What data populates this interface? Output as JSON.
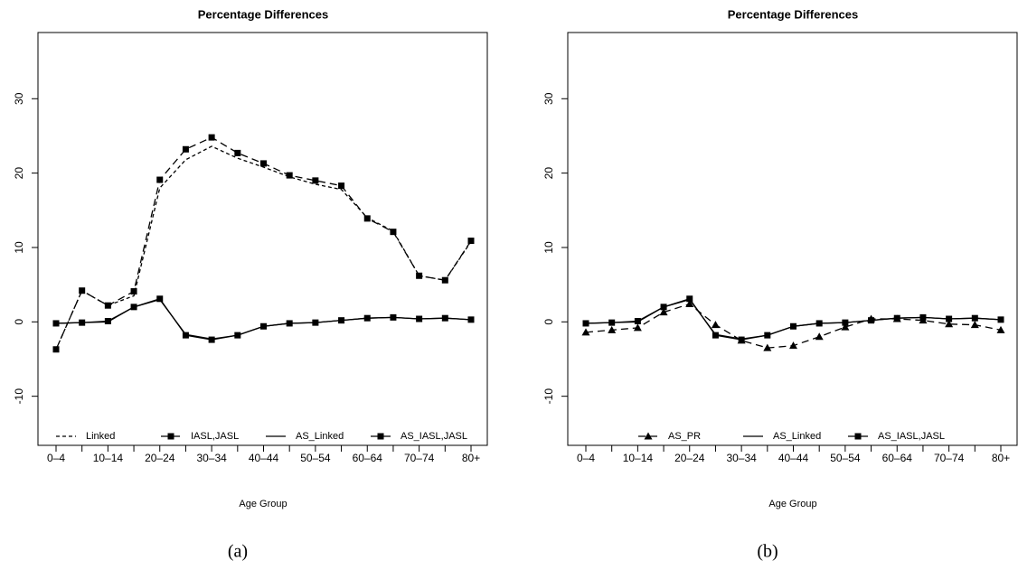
{
  "chart_data": [
    {
      "type": "line",
      "title": "Percentage Differences",
      "x_label": "Age Group",
      "caption": "(a)",
      "categories": [
        "0–4",
        null,
        "10–14",
        null,
        "20–24",
        null,
        "30–34",
        null,
        "40–44",
        null,
        "50–54",
        null,
        "60–64",
        null,
        "70–74",
        null,
        "80+"
      ],
      "ylim": [
        -16.6,
        38.9
      ],
      "yticks": [
        -10,
        0,
        10,
        20,
        30
      ],
      "grid": false,
      "legend": "bottom",
      "series": [
        {
          "name": "Linked",
          "color": "#000000",
          "line_style": "short-dash",
          "marker": "none",
          "values": [
            -3.7,
            4.2,
            2.2,
            3.5,
            18.0,
            21.8,
            23.6,
            22.0,
            20.8,
            19.5,
            18.5,
            17.8,
            14.0,
            12.2,
            6.2,
            5.6,
            10.8
          ]
        },
        {
          "name": "IASL,JASL",
          "color": "#000000",
          "line_style": "long-dash",
          "marker": "square",
          "values": [
            -3.7,
            4.2,
            2.2,
            4.1,
            19.1,
            23.2,
            24.8,
            22.7,
            21.3,
            19.7,
            19.0,
            18.3,
            13.9,
            12.1,
            6.2,
            5.6,
            10.9
          ]
        },
        {
          "name": "AS_Linked",
          "color": "#000000",
          "line_style": "solid",
          "marker": "none",
          "values": [
            -0.2,
            -0.1,
            0.0,
            2.0,
            3.0,
            -1.7,
            -2.3,
            -1.8,
            -0.6,
            -0.2,
            -0.1,
            0.2,
            0.5,
            0.6,
            0.4,
            0.5,
            0.3
          ]
        },
        {
          "name": "AS_IASL,JASL",
          "color": "#000000",
          "line_style": "solid",
          "marker": "square",
          "values": [
            -0.2,
            -0.1,
            0.1,
            2.0,
            3.1,
            -1.8,
            -2.4,
            -1.8,
            -0.6,
            -0.2,
            -0.1,
            0.2,
            0.5,
            0.6,
            0.4,
            0.5,
            0.3
          ]
        }
      ]
    },
    {
      "type": "line",
      "title": "Percentage Differences",
      "x_label": "Age Group",
      "caption": "(b)",
      "categories": [
        "0–4",
        null,
        "10–14",
        null,
        "20–24",
        null,
        "30–34",
        null,
        "40–44",
        null,
        "50–54",
        null,
        "60–64",
        null,
        "70–74",
        null,
        "80+"
      ],
      "ylim": [
        -16.6,
        38.9
      ],
      "yticks": [
        -10,
        0,
        10,
        20,
        30
      ],
      "grid": false,
      "legend": "bottom",
      "series": [
        {
          "name": "AS_PR",
          "color": "#000000",
          "line_style": "long-dash",
          "marker": "triangle",
          "values": [
            -1.4,
            -1.1,
            -0.8,
            1.3,
            2.4,
            -0.4,
            -2.5,
            -3.5,
            -3.2,
            -2.0,
            -0.7,
            0.4,
            0.4,
            0.2,
            -0.3,
            -0.4,
            -1.1
          ]
        },
        {
          "name": "AS_Linked",
          "color": "#000000",
          "line_style": "solid",
          "marker": "none",
          "values": [
            -0.2,
            -0.1,
            0.0,
            2.0,
            3.0,
            -1.7,
            -2.3,
            -1.8,
            -0.6,
            -0.2,
            -0.1,
            0.2,
            0.5,
            0.6,
            0.4,
            0.5,
            0.3
          ]
        },
        {
          "name": "AS_IASL,JASL",
          "color": "#000000",
          "line_style": "solid",
          "marker": "square",
          "values": [
            -0.2,
            -0.1,
            0.1,
            2.0,
            3.1,
            -1.8,
            -2.4,
            -1.8,
            -0.6,
            -0.2,
            -0.1,
            0.2,
            0.5,
            0.6,
            0.4,
            0.5,
            0.3
          ]
        }
      ]
    }
  ]
}
